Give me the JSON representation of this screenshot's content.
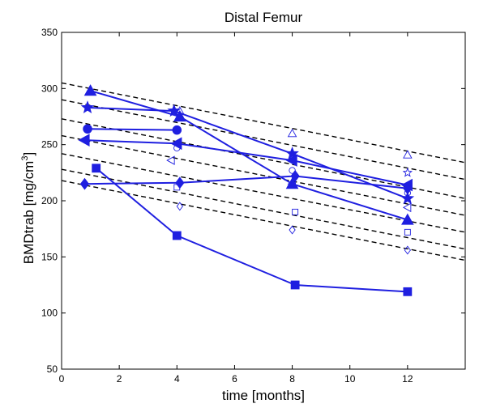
{
  "chart_data": {
    "type": "line",
    "title": "Distal Femur",
    "xlabel": "time [months]",
    "ylabel": {
      "prefix": "BMDtrab [mg/cm",
      "sup": "3",
      "suffix": "]"
    },
    "xlim": [
      0,
      14
    ],
    "ylim": [
      50,
      350
    ],
    "xticks": [
      "0",
      "2",
      "4",
      "6",
      "8",
      "10",
      "12"
    ],
    "yticks": [
      "50",
      "100",
      "150",
      "200",
      "250",
      "300",
      "350"
    ],
    "grid": false,
    "legend": "none",
    "colors": {
      "series": "#1f1fe0",
      "reference": "#000000"
    },
    "series": [
      {
        "marker": "triangle-up",
        "x": [
          1,
          4.1,
          8,
          12
        ],
        "y": [
          298,
          275,
          215,
          183
        ]
      },
      {
        "marker": "star",
        "x": [
          0.9,
          3.9,
          8,
          12
        ],
        "y": [
          283,
          280,
          242,
          202
        ]
      },
      {
        "marker": "circle",
        "x": [
          0.9,
          4
        ],
        "y": [
          264,
          263
        ]
      },
      {
        "marker": "triangle-left",
        "x": [
          0.8,
          4,
          8,
          12
        ],
        "y": [
          254,
          251,
          236,
          214
        ]
      },
      {
        "marker": "diamond",
        "x": [
          0.8,
          4.1,
          8.1,
          12
        ],
        "y": [
          215,
          216,
          222,
          211
        ]
      },
      {
        "marker": "square",
        "x": [
          1.2,
          4,
          8.1,
          12
        ],
        "y": [
          229,
          169,
          125,
          119
        ]
      }
    ],
    "reference_lines": [
      {
        "x": [
          0,
          14
        ],
        "y": [
          305,
          234
        ]
      },
      {
        "x": [
          0,
          14
        ],
        "y": [
          290,
          219
        ]
      },
      {
        "x": [
          0,
          14
        ],
        "y": [
          273,
          202
        ]
      },
      {
        "x": [
          0,
          14
        ],
        "y": [
          258,
          187
        ]
      },
      {
        "x": [
          0,
          14
        ],
        "y": [
          242,
          172
        ]
      },
      {
        "x": [
          0,
          14
        ],
        "y": [
          228,
          157
        ]
      },
      {
        "x": [
          0,
          14
        ],
        "y": [
          218,
          147
        ]
      }
    ],
    "open_markers": [
      {
        "marker": "triangle-up",
        "x": 4.1,
        "y": 280
      },
      {
        "marker": "triangle-up",
        "x": 8,
        "y": 260
      },
      {
        "marker": "triangle-up",
        "x": 12,
        "y": 241
      },
      {
        "marker": "star",
        "x": 12,
        "y": 225
      },
      {
        "marker": "circle",
        "x": 4,
        "y": 247
      },
      {
        "marker": "circle",
        "x": 8,
        "y": 227
      },
      {
        "marker": "circle",
        "x": 12,
        "y": 207
      },
      {
        "marker": "triangle-left",
        "x": 3.8,
        "y": 236
      },
      {
        "marker": "triangle-left",
        "x": 8,
        "y": 215
      },
      {
        "marker": "triangle-left",
        "x": 12,
        "y": 194
      },
      {
        "marker": "square",
        "x": 4,
        "y": 212
      },
      {
        "marker": "square",
        "x": 8.1,
        "y": 190
      },
      {
        "marker": "square",
        "x": 12,
        "y": 172
      },
      {
        "marker": "diamond",
        "x": 4.1,
        "y": 195
      },
      {
        "marker": "diamond",
        "x": 8,
        "y": 174
      },
      {
        "marker": "diamond",
        "x": 12,
        "y": 156
      }
    ]
  }
}
